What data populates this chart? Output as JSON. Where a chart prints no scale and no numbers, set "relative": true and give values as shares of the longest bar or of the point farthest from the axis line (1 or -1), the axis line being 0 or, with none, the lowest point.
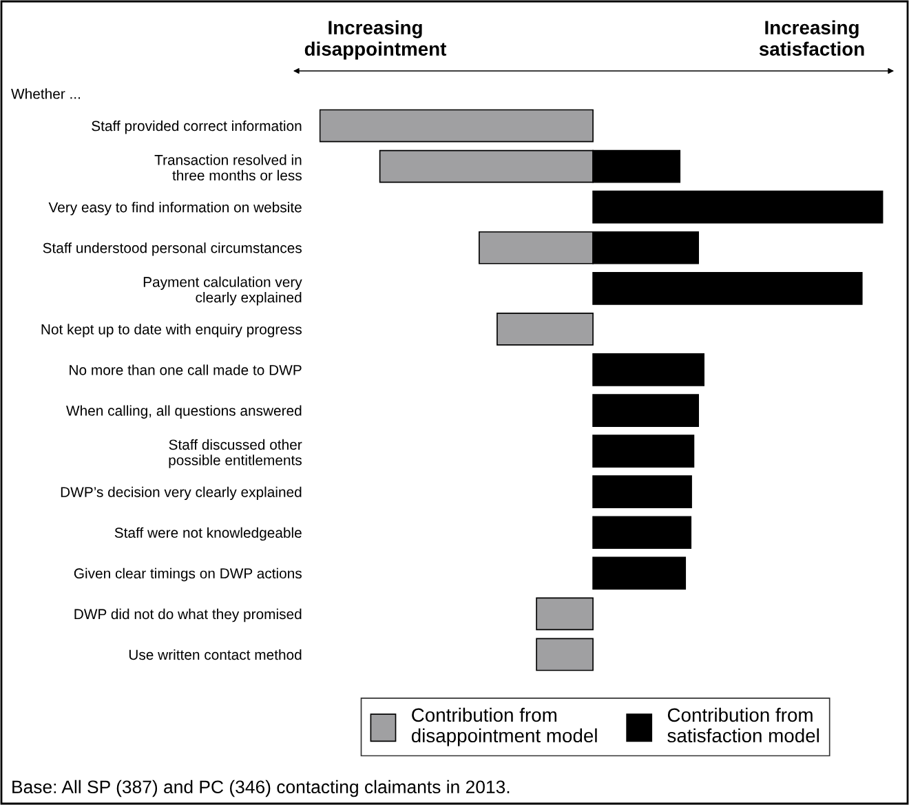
{
  "chart_data": {
    "type": "bar",
    "orientation": "horizontal",
    "stacked": true,
    "relative": true,
    "tick_labels": "y",
    "grid": false,
    "legend": "bottom",
    "categories": [
      "Staff provided correct information",
      "Transaction resolved in\nthree months or less",
      "Very easy to find information on website",
      "Staff understood personal circumstances",
      "Payment calculation very\nclearly explained",
      "Not kept up to date with enquiry progress",
      "No more than one call made to DWP",
      "When calling, all questions answered",
      "Staff discussed other\npossible entitlements",
      "DWP’s decision very clearly explained",
      "Staff were not knowledgeable",
      "Given clear timings on DWP actions",
      "DWP did not do what they promised",
      "Use written contact method"
    ],
    "series": [
      {
        "name": "Contribution from\ndisappointment model",
        "color": "#a0a0a2",
        "values": [
          -0.943,
          -0.736,
          null,
          -0.393,
          null,
          -0.331,
          null,
          null,
          null,
          null,
          null,
          null,
          -0.195,
          -0.195
        ]
      },
      {
        "name": "Contribution from\nsatisfaction model",
        "color": "#000000",
        "values": [
          null,
          0.3,
          1.0,
          0.364,
          0.929,
          null,
          0.383,
          0.364,
          0.348,
          0.34,
          0.338,
          0.319,
          null,
          null
        ]
      }
    ],
    "annotations": [
      "Increasing\ndisappointment",
      "Increasing\nsatisfaction",
      "Whether ...",
      "Base: All SP (387) and PC (346) contacting claimants in 2013."
    ]
  }
}
